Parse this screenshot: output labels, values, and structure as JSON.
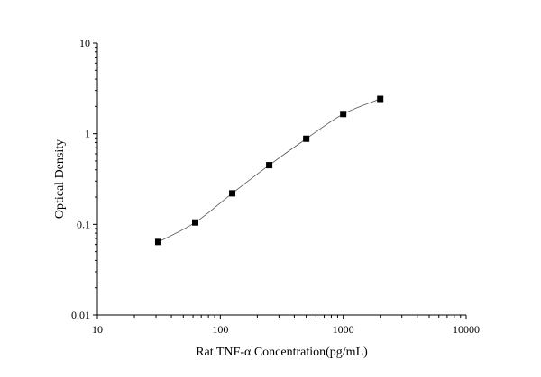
{
  "chart_data": {
    "type": "scatter",
    "title": "",
    "xlabel": "Rat TNF-α Concentration(pg/mL)",
    "ylabel": "Optical Density",
    "x_scale": "log",
    "y_scale": "log",
    "xlim": [
      10,
      10000
    ],
    "ylim": [
      0.01,
      10
    ],
    "x_ticks": [
      10,
      100,
      1000,
      10000
    ],
    "x_tick_labels": [
      "10",
      "100",
      "1000",
      "10000"
    ],
    "y_ticks": [
      0.01,
      0.1,
      1,
      10
    ],
    "y_tick_labels": [
      "0.01",
      "0.1",
      "1",
      "10"
    ],
    "grid": false,
    "legend": "none",
    "series": [
      {
        "x": [
          31.25,
          62.5,
          125,
          250,
          500,
          1000,
          2000
        ],
        "y": [
          0.064,
          0.105,
          0.22,
          0.45,
          0.88,
          1.65,
          2.42
        ],
        "marker": "square",
        "line": "fitted-curve",
        "marker_color": "#000000",
        "line_color": "#555555"
      }
    ]
  }
}
